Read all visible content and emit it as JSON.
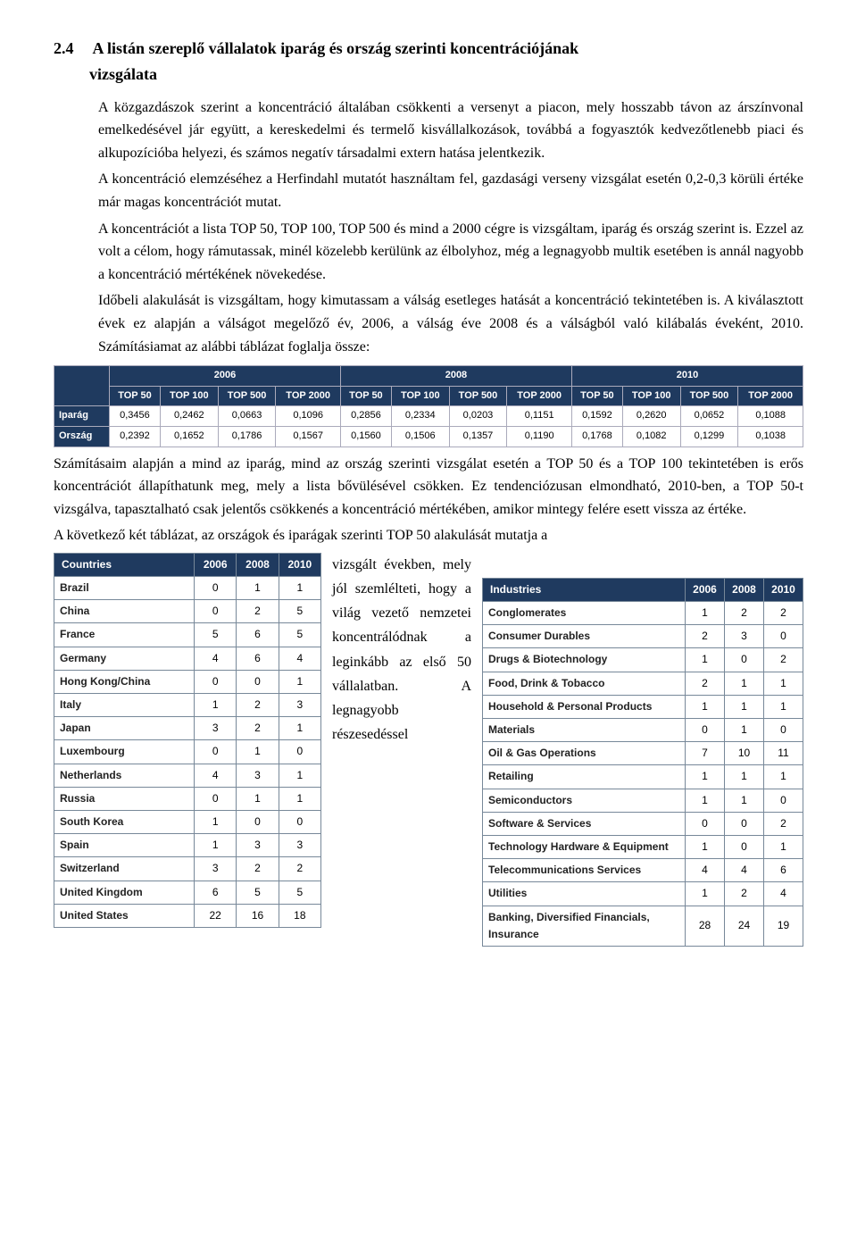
{
  "heading_num": "2.4",
  "heading_title1": "A listán szereplő vállalatok iparág és ország szerinti koncentrációjának",
  "heading_title2": "vizsgálata",
  "p1": "A közgazdászok szerint a koncentráció általában csökkenti a versenyt a piacon, mely hosszabb távon az árszínvonal emelkedésével jár együtt, a kereskedelmi és termelő kisvállalkozások, továbbá a fogyasztók kedvezőtlenebb piaci és alkupozícióba helyezi, és számos negatív társadalmi extern hatása jelentkezik.",
  "p2": "A koncentráció elemzéséhez a Herfindahl mutatót használtam fel, gazdasági verseny vizsgálat esetén 0,2-0,3 körüli értéke már magas koncentrációt mutat.",
  "p3": "A koncentrációt a lista TOP 50, TOP 100, TOP 500 és mind a 2000 cégre is vizsgáltam, iparág és ország szerint is. Ezzel az volt a célom, hogy rámutassak, minél közelebb kerülünk az élbolyhoz, még a legnagyobb multik esetében is annál nagyobb a koncentráció mértékének növekedése.",
  "p4": "Időbeli alakulását is vizsgáltam, hogy kimutassam a válság esetleges hatását a koncentráció tekintetében is. A kiválasztott évek ez alapján a válságot megelőző év, 2006, a válság éve 2008 és a válságból való kilábalás éveként, 2010. Számításiamat az alábbi táblázat foglalja össze:",
  "wide": {
    "years": [
      "2006",
      "2008",
      "2010"
    ],
    "tops": [
      "TOP 50",
      "TOP 100",
      "TOP 500",
      "TOP 2000"
    ],
    "rows": [
      {
        "label": "Iparág",
        "vals": [
          "0,3456",
          "0,2462",
          "0,0663",
          "0,1096",
          "0,2856",
          "0,2334",
          "0,0203",
          "0,1151",
          "0,1592",
          "0,2620",
          "0,0652",
          "0,1088"
        ]
      },
      {
        "label": "Ország",
        "vals": [
          "0,2392",
          "0,1652",
          "0,1786",
          "0,1567",
          "0,1560",
          "0,1506",
          "0,1357",
          "0,1190",
          "0,1768",
          "0,1082",
          "0,1299",
          "0,1038"
        ]
      }
    ]
  },
  "p5": "Számításaim alapján a mind az iparág, mind az ország szerinti vizsgálat esetén a TOP 50 és a TOP 100 tekintetében is erős koncentrációt állapíthatunk meg, mely a lista bővülésével csökken. Ez tendenciózusan elmondható, 2010-ben, a TOP 50-t vizsgálva, tapasztalható csak jelentős csökkenés a koncentráció mértékében, amikor mintegy felére esett vissza az értéke.",
  "p6": "A következő két táblázat, az országok és iparágak szerinti TOP 50 alakulását mutatja a",
  "midtext": "vizsgált években, mely jól szemlélteti, hogy a világ vezető nemzetei koncentrálódnak a leginkább az első 50 vállalatban. A legnagyobb részesedéssel",
  "countries": {
    "head": [
      "Countries",
      "2006",
      "2008",
      "2010"
    ],
    "rows": [
      [
        "Brazil",
        "0",
        "1",
        "1"
      ],
      [
        "China",
        "0",
        "2",
        "5"
      ],
      [
        "France",
        "5",
        "6",
        "5"
      ],
      [
        "Germany",
        "4",
        "6",
        "4"
      ],
      [
        "Hong Kong/China",
        "0",
        "0",
        "1"
      ],
      [
        "Italy",
        "1",
        "2",
        "3"
      ],
      [
        "Japan",
        "3",
        "2",
        "1"
      ],
      [
        "Luxembourg",
        "0",
        "1",
        "0"
      ],
      [
        "Netherlands",
        "4",
        "3",
        "1"
      ],
      [
        "Russia",
        "0",
        "1",
        "1"
      ],
      [
        "South Korea",
        "1",
        "0",
        "0"
      ],
      [
        "Spain",
        "1",
        "3",
        "3"
      ],
      [
        "Switzerland",
        "3",
        "2",
        "2"
      ],
      [
        "United Kingdom",
        "6",
        "5",
        "5"
      ],
      [
        "United States",
        "22",
        "16",
        "18"
      ]
    ]
  },
  "industries": {
    "head": [
      "Industries",
      "2006",
      "2008",
      "2010"
    ],
    "rows": [
      [
        "Conglomerates",
        "1",
        "2",
        "2"
      ],
      [
        "Consumer Durables",
        "2",
        "3",
        "0"
      ],
      [
        "Drugs & Biotechnology",
        "1",
        "0",
        "2"
      ],
      [
        "Food, Drink & Tobacco",
        "2",
        "1",
        "1"
      ],
      [
        "Household & Personal Products",
        "1",
        "1",
        "1"
      ],
      [
        "Materials",
        "0",
        "1",
        "0"
      ],
      [
        "Oil & Gas Operations",
        "7",
        "10",
        "11"
      ],
      [
        "Retailing",
        "1",
        "1",
        "1"
      ],
      [
        "Semiconductors",
        "1",
        "1",
        "0"
      ],
      [
        "Software & Services",
        "0",
        "0",
        "2"
      ],
      [
        "Technology Hardware & Equipment",
        "1",
        "0",
        "1"
      ],
      [
        "Telecommunications Services",
        "4",
        "4",
        "6"
      ],
      [
        "Utilities",
        "1",
        "2",
        "4"
      ],
      [
        "Banking, Diversified Financials, Insurance",
        "28",
        "24",
        "19"
      ]
    ]
  }
}
